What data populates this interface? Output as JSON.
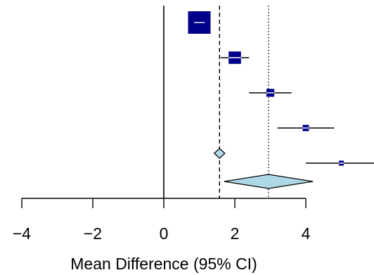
{
  "chart_data": {
    "type": "forest",
    "xlabel": "Mean Difference (95% CI)",
    "xlim": [
      -4,
      5.9
    ],
    "ticks": [
      -4,
      -2,
      0,
      2,
      4
    ],
    "tick_labels": [
      "−4",
      "−2",
      "0",
      "2",
      "4"
    ],
    "studies": [
      {
        "est": 1.0,
        "lo": 0.85,
        "hi": 1.15,
        "weight": 1.0
      },
      {
        "est": 2.0,
        "lo": 1.6,
        "hi": 2.4,
        "weight": 0.55
      },
      {
        "est": 3.0,
        "lo": 2.4,
        "hi": 3.6,
        "weight": 0.35
      },
      {
        "est": 4.0,
        "lo": 3.2,
        "hi": 4.8,
        "weight": 0.28
      },
      {
        "est": 5.0,
        "lo": 4.0,
        "hi": 6.0,
        "weight": 0.22
      }
    ],
    "summaries": [
      {
        "est": 1.57,
        "lo": 1.42,
        "hi": 1.72,
        "line_style": "dashed"
      },
      {
        "est": 2.95,
        "lo": 1.7,
        "hi": 4.2,
        "line_style": "dotted"
      }
    ],
    "null_line": 0,
    "colors": {
      "box_fill": "#00008b",
      "summary_fill": "#add8e6",
      "line": "#000000"
    }
  }
}
